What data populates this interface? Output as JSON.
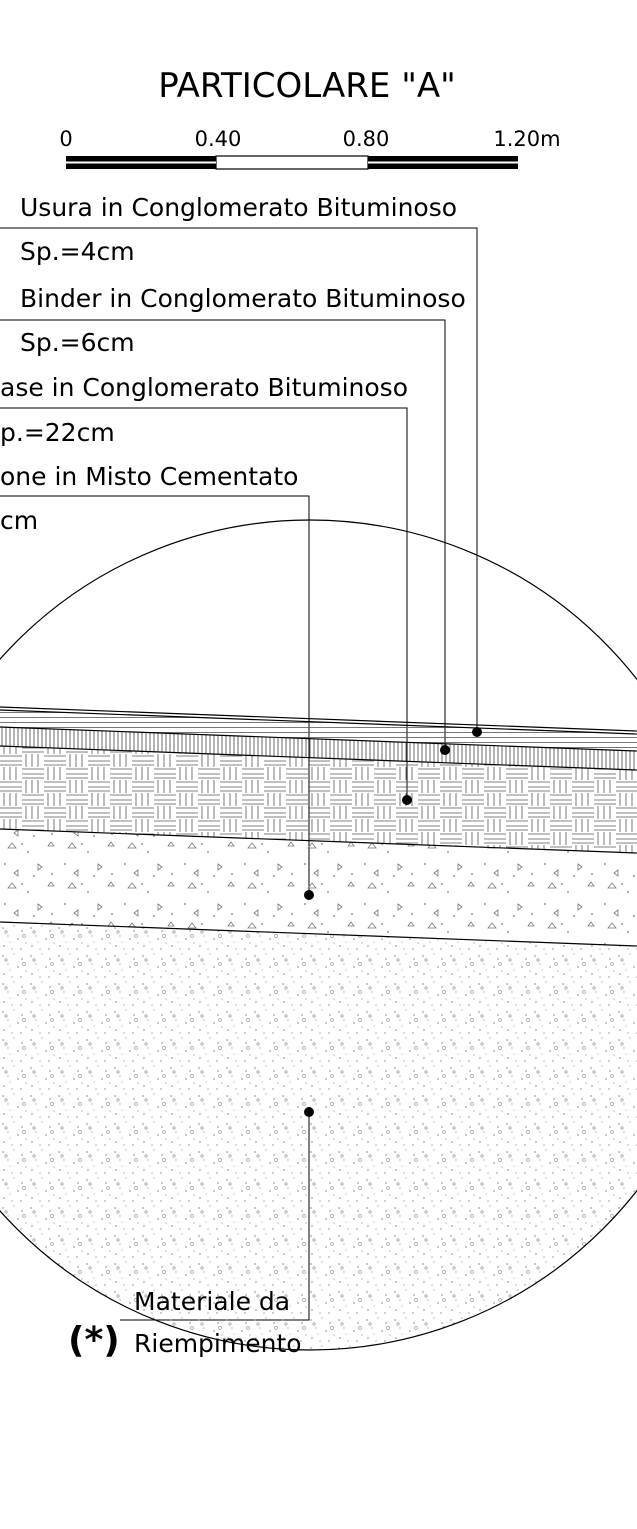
{
  "title": "PARTICOLARE \"A\"",
  "scale_bar": {
    "ticks": [
      "0",
      "0.40",
      "0.80",
      "1.20m"
    ]
  },
  "layers": [
    {
      "name": "Usura in Conglomerato Bituminoso",
      "thickness": "Sp.=4cm"
    },
    {
      "name": "Binder in Conglomerato Bituminoso",
      "thickness": "Sp.=6cm"
    },
    {
      "name": "ase in Conglomerato Bituminoso",
      "thickness": "p.=22cm"
    },
    {
      "name": "one in Misto Cementato",
      "thickness": "cm"
    }
  ],
  "fill_note": {
    "marker": "(*)",
    "line1": "Materiale da",
    "line2": "Riempimento"
  },
  "colors": {
    "ink": "#000000",
    "hatch": "#555555",
    "background": "#ffffff"
  }
}
